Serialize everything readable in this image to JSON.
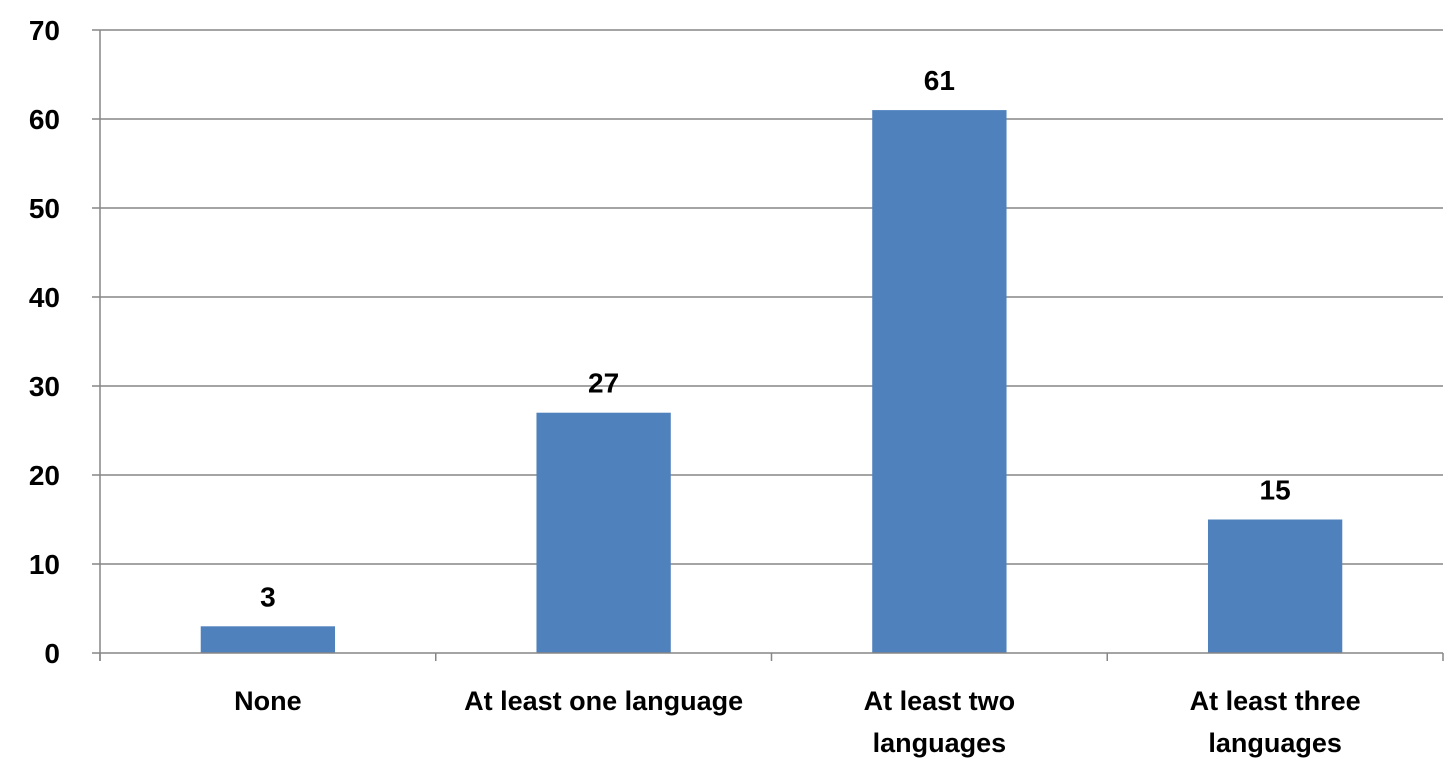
{
  "chart_data": {
    "type": "bar",
    "categories": [
      [
        "None"
      ],
      [
        "At least one language"
      ],
      [
        "At least two",
        "languages"
      ],
      [
        "At least three",
        "languages"
      ]
    ],
    "values": [
      3,
      27,
      61,
      15
    ],
    "data_labels": [
      "3",
      "27",
      "61",
      "15"
    ],
    "yticks": [
      "0",
      "10",
      "20",
      "30",
      "40",
      "50",
      "60",
      "70"
    ],
    "ylim": [
      0,
      70
    ],
    "grid": true,
    "legend": "none",
    "title": "",
    "xlabel": "",
    "ylabel": ""
  },
  "colors": {
    "bar": "#4F81BD",
    "grid": "#868686",
    "axis": "#868686"
  }
}
